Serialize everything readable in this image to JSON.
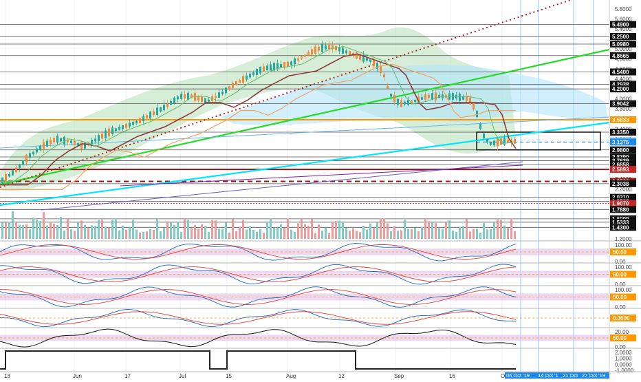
{
  "chart_data": {
    "type": "candlestick-with-indicators",
    "x_axis": {
      "labels": [
        "13",
        "Jun",
        "17",
        "Jul",
        "15",
        "Aug",
        "12",
        "Sep",
        "16",
        "Oc"
      ],
      "date_badges": [
        "06 Oct '19",
        "14 Oct '1",
        "21 Oct",
        "27 Oct '19"
      ]
    },
    "price_scale": {
      "ticks": [
        "5.8000",
        "5.6000",
        "5.4000",
        "5.2000",
        "5.0000",
        "4.8000",
        "4.6000",
        "4.4000",
        "4.2000",
        "4.0000",
        "3.8000",
        "3.6000",
        "3.4000",
        "3.2000",
        "3.0000",
        "2.8000",
        "2.6000",
        "2.4000",
        "2.2000",
        "2.0000",
        "1.8000",
        "1.6000",
        "1.4000",
        "1.2000"
      ],
      "level_labels": [
        {
          "text": "5.4900",
          "style": "dark"
        },
        {
          "text": "5.2500",
          "style": "dark"
        },
        {
          "text": "5.0980",
          "style": "dark"
        },
        {
          "text": "4.8665",
          "style": "dark"
        },
        {
          "text": "4.5400",
          "style": "dark"
        },
        {
          "text": "4.2938",
          "style": "dark"
        },
        {
          "text": "4.2000",
          "style": "dark"
        },
        {
          "text": "3.9042",
          "style": "dark"
        },
        {
          "text": "3.5833",
          "style": "orange"
        },
        {
          "text": "3.3350",
          "style": "dark"
        },
        {
          "text": "3.1621",
          "style": "lightblue"
        },
        {
          "text": "3.1375",
          "style": "blue"
        },
        {
          "text": "2.9800",
          "style": "dark"
        },
        {
          "text": "2.8390",
          "style": "dark"
        },
        {
          "text": "2.7639",
          "style": "dark"
        },
        {
          "text": "2.6858",
          "style": "dark"
        },
        {
          "text": "2.5893",
          "style": "red"
        },
        {
          "text": "2.3500",
          "style": "darkred"
        },
        {
          "text": "2.3038",
          "style": "dark"
        },
        {
          "text": "2.0310",
          "style": "dark"
        },
        {
          "text": "1.9503",
          "style": "dark"
        },
        {
          "text": "1.9070",
          "style": "red"
        },
        {
          "text": "1.7880",
          "style": "dark"
        },
        {
          "text": "1.6009",
          "style": "dark"
        },
        {
          "text": "1.5333",
          "style": "dark"
        },
        {
          "text": "1.4300",
          "style": "dark"
        }
      ]
    },
    "indicator_panels": [
      {
        "ticks": [
          "100.00",
          "50.00",
          "0.00"
        ],
        "highlight": "50.00"
      },
      {
        "ticks": [
          "100.00",
          "50.00",
          "0.00"
        ],
        "highlight": "50.00"
      },
      {
        "ticks": [
          "100.00",
          "50.00",
          "0.00"
        ],
        "highlight": "50.00"
      },
      {
        "ticks": [
          "0.0000"
        ],
        "highlight": "0.0000"
      },
      {
        "ticks": [
          "20.00",
          "0.00"
        ],
        "highlight": "50.00"
      },
      {
        "ticks": [
          "2.0000",
          "1.0000",
          "0.0000",
          "-1.0000"
        ],
        "highlight": ""
      }
    ],
    "colors": {
      "up": "#26a69a",
      "down": "#ef5350",
      "orange": "#ff9800",
      "cyan": "#00e5ff",
      "green": "#2ecc2e",
      "dotted_red": "#b22222",
      "ichimoku_cloud_green": "#a5d6a7",
      "ichimoku_cloud_blue": "#b3e5fc",
      "band_purple": "#e1bee7"
    }
  }
}
